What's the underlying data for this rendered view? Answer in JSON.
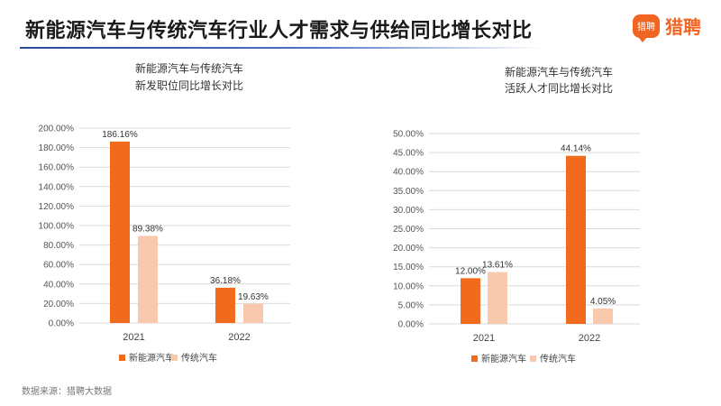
{
  "header": {
    "title": "新能源汽车与传统汽车行业人才需求与供给同比增长对比",
    "logo_badge": "猎聘",
    "logo_text": "猎聘"
  },
  "footer": {
    "source": "数据来源：猎聘大数据"
  },
  "colors": {
    "series_1": "#f26a1b",
    "series_2": "#f8c9ac",
    "title_underline": "#2a4c9a",
    "brand": "#f16522"
  },
  "chart_data": [
    {
      "type": "bar",
      "title_lines": [
        "新能源汽车与传统汽车",
        "新发职位同比增长对比"
      ],
      "categories": [
        "2021",
        "2022"
      ],
      "series": [
        {
          "name": "新能源汽车",
          "values": [
            186.16,
            36.18
          ],
          "labels": [
            "186.16%",
            "36.18%"
          ]
        },
        {
          "name": "传统汽车",
          "values": [
            89.38,
            19.63
          ],
          "labels": [
            "89.38%",
            "19.63%"
          ]
        }
      ],
      "ylim": [
        0,
        200
      ],
      "yticks": [
        "0.00%",
        "20.00%",
        "40.00%",
        "60.00%",
        "80.00%",
        "100.00%",
        "120.00%",
        "140.00%",
        "160.00%",
        "180.00%",
        "200.00%"
      ],
      "grid": true,
      "legend": "bottom"
    },
    {
      "type": "bar",
      "title_lines": [
        "新能源汽车与传统汽车",
        "活跃人才同比增长对比"
      ],
      "categories": [
        "2021",
        "2022"
      ],
      "series": [
        {
          "name": "新能源汽车",
          "values": [
            12.0,
            44.14
          ],
          "labels": [
            "12.00%",
            "44.14%"
          ]
        },
        {
          "name": "传统汽车",
          "values": [
            13.61,
            4.05
          ],
          "labels": [
            "13.61%",
            "4.05%"
          ]
        }
      ],
      "ylim": [
        0,
        50
      ],
      "yticks": [
        "0.00%",
        "5.00%",
        "10.00%",
        "15.00%",
        "20.00%",
        "25.00%",
        "30.00%",
        "35.00%",
        "40.00%",
        "45.00%",
        "50.00%"
      ],
      "grid": true,
      "legend": "bottom"
    }
  ]
}
